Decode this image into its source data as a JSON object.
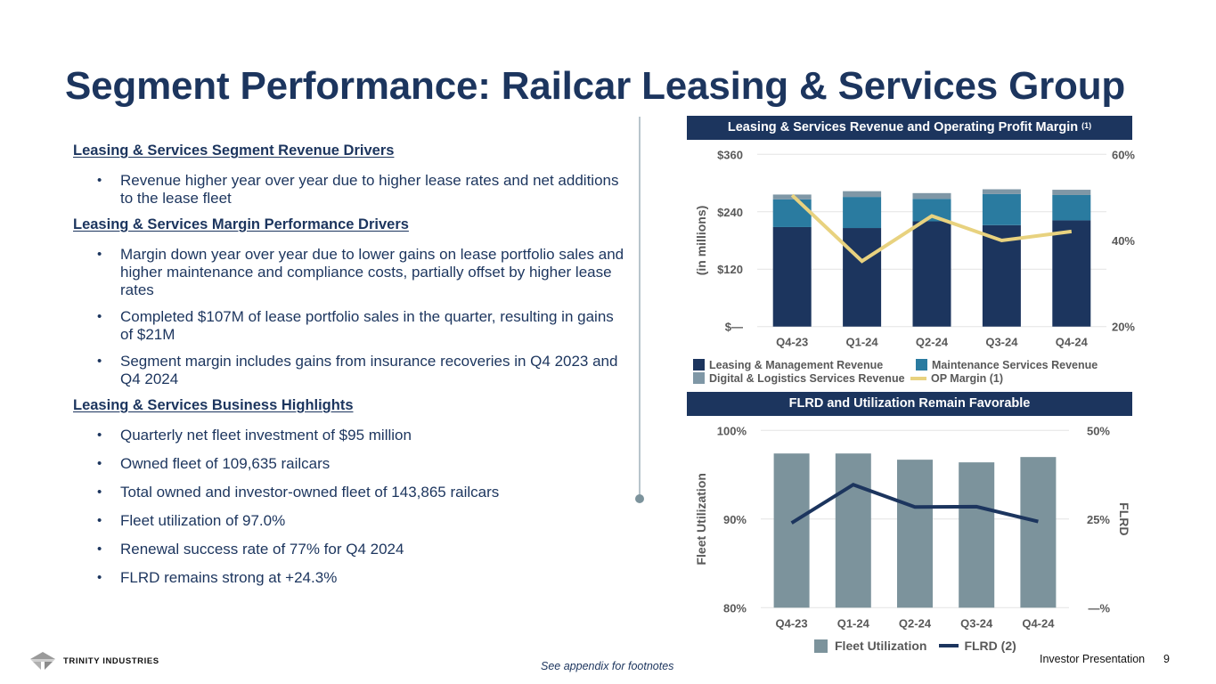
{
  "title": "Segment Performance: Railcar Leasing & Services Group",
  "sections": [
    {
      "heading": "Leasing & Services Segment Revenue Drivers",
      "bullets": [
        "Revenue higher year over year due to higher lease rates and net additions to the lease fleet"
      ]
    },
    {
      "heading": "Leasing & Services Margin Performance Drivers",
      "bullets": [
        "Margin down year over year due to lower gains on lease portfolio sales and higher maintenance and compliance costs, partially offset by higher lease rates",
        "Completed $107M of lease portfolio sales in the quarter, resulting in gains of $21M",
        "Segment margin includes gains from insurance recoveries in Q4 2023 and Q4 2024"
      ]
    },
    {
      "heading": "Leasing & Services Business Highlights",
      "bullets": [
        "Quarterly net fleet investment of $95 million",
        "Owned fleet of 109,635 railcars",
        "Total owned and investor-owned fleet of 143,865 railcars",
        "Fleet utilization of 97.0%",
        "Renewal success rate of 77% for Q4 2024",
        "FLRD remains strong at +24.3%"
      ]
    }
  ],
  "colors": {
    "navy": "#1c355e",
    "teal": "#2a7ba0",
    "slate": "#7f97a6",
    "gold": "#e8d27f",
    "util_gray": "#7c939c",
    "axis_text": "#595959"
  },
  "chart_data": [
    {
      "type": "bar",
      "stacked": true,
      "title": "Leasing & Services Revenue and Operating Profit Margin",
      "title_superscript": "(1)",
      "categories": [
        "Q4-23",
        "Q1-24",
        "Q2-24",
        "Q3-24",
        "Q4-24"
      ],
      "ylabel": "(in millions)",
      "ylim": [
        0,
        360
      ],
      "yticks": [
        0,
        120,
        240,
        360
      ],
      "ytick_labels": [
        "$—",
        "$120",
        "$240",
        "$360"
      ],
      "y2lim": [
        20,
        60
      ],
      "y2ticks": [
        20,
        40,
        60
      ],
      "y2tick_labels": [
        "20%",
        "40%",
        "60%"
      ],
      "grid": true,
      "legend_position": "bottom",
      "series": [
        {
          "name": "Leasing & Management Revenue",
          "kind": "bar",
          "axis": "left",
          "color": "#1c355e",
          "values": [
            208,
            206,
            220,
            212,
            222
          ]
        },
        {
          "name": "Maintenance Services Revenue",
          "kind": "bar",
          "axis": "left",
          "color": "#2a7ba0",
          "values": [
            58,
            65,
            47,
            65,
            53
          ]
        },
        {
          "name": "Digital & Logistics Services Revenue",
          "kind": "bar",
          "axis": "left",
          "color": "#7f97a6",
          "values": [
            10,
            12,
            12,
            10,
            11
          ]
        },
        {
          "name": "OP Margin (1)",
          "kind": "line",
          "axis": "right",
          "color": "#e8d27f",
          "values": [
            50.5,
            35.2,
            45.7,
            40.0,
            42.1
          ]
        }
      ]
    },
    {
      "type": "bar",
      "title": "FLRD and Utilization Remain Favorable",
      "categories": [
        "Q4-23",
        "Q1-24",
        "Q2-24",
        "Q3-24",
        "Q4-24"
      ],
      "ylabel": "Fleet Utilization",
      "ylim": [
        80,
        100
      ],
      "yticks": [
        80,
        90,
        100
      ],
      "ytick_labels": [
        "80%",
        "90%",
        "100%"
      ],
      "y2label": "FLRD",
      "y2lim": [
        0,
        50
      ],
      "y2ticks": [
        0,
        25,
        50
      ],
      "y2tick_labels": [
        "—%",
        "25%",
        "50%"
      ],
      "grid": true,
      "legend_position": "bottom",
      "series": [
        {
          "name": "Fleet Utilization",
          "kind": "bar",
          "axis": "left",
          "color": "#7c939c",
          "values": [
            97.4,
            97.4,
            96.7,
            96.4,
            97.0
          ]
        },
        {
          "name": "FLRD (2)",
          "kind": "line",
          "axis": "right",
          "color": "#1c355e",
          "values": [
            23.9,
            34.7,
            28.4,
            28.5,
            24.3
          ]
        }
      ]
    }
  ],
  "footer": {
    "logo_text": "TRINITY INDUSTRIES",
    "footnote": "See appendix for footnotes",
    "presentation": "Investor Presentation",
    "page": "9"
  }
}
